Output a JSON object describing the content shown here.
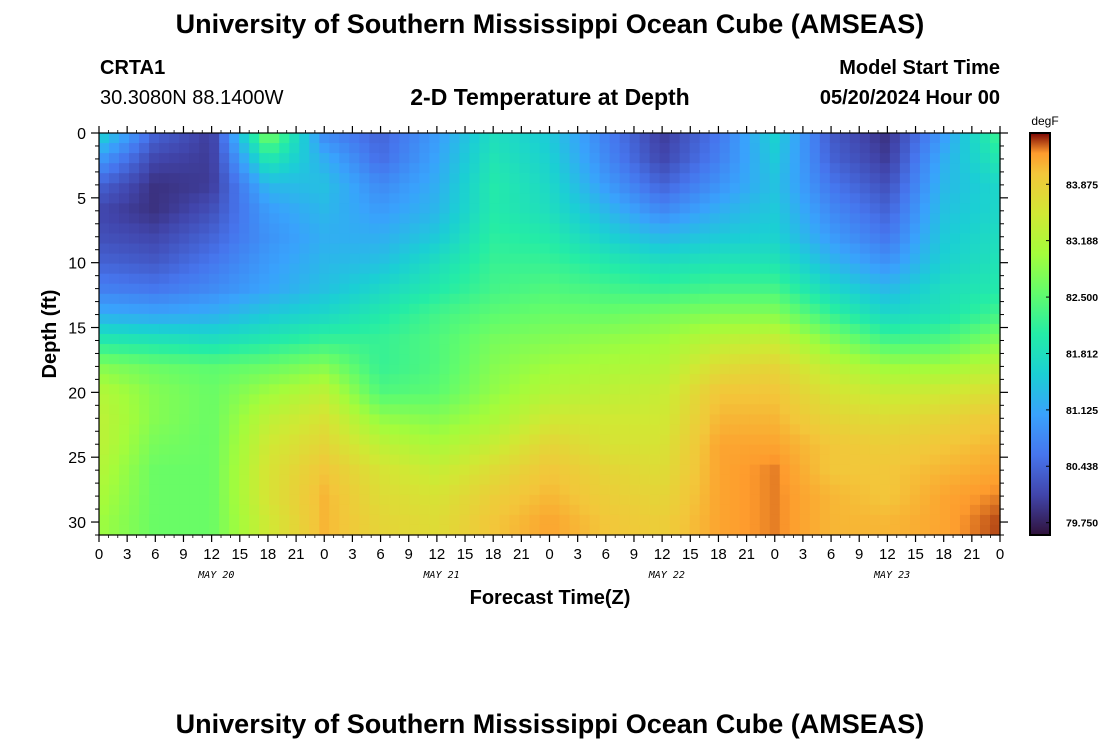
{
  "header": {
    "main_title": "University of Southern Mississippi Ocean Cube (AMSEAS)",
    "station_name": "CRTA1",
    "station_coords": "30.3080N  88.1400W",
    "plot_title": "2-D Temperature at Depth",
    "model_start_label": "Model Start Time",
    "model_start_value": "05/20/2024 Hour 00"
  },
  "footer": {
    "repeat_title": "University of Southern Mississippi Ocean Cube (AMSEAS)"
  },
  "chart_data": {
    "type": "heatmap",
    "title": "2-D Temperature at Depth",
    "xlabel": "Forecast Time(Z)",
    "ylabel": "Depth (ft)",
    "x_range_hours": [
      0,
      96
    ],
    "x_tick_labels": [
      "0",
      "3",
      "6",
      "9",
      "12",
      "15",
      "18",
      "21",
      "0",
      "3",
      "6",
      "9",
      "12",
      "15",
      "18",
      "21",
      "0",
      "3",
      "6",
      "9",
      "12",
      "15",
      "18",
      "21",
      "0",
      "3",
      "6",
      "9",
      "12",
      "15",
      "18",
      "21",
      "0"
    ],
    "day_labels": [
      "MAY 20",
      "MAY 21",
      "MAY 22",
      "MAY 23"
    ],
    "y_range_ft": [
      0,
      31
    ],
    "y_ticks": [
      0,
      5,
      10,
      15,
      20,
      25,
      30
    ],
    "colorbar": {
      "unit": "degF",
      "min": 79.6,
      "max": 84.5,
      "tick_values": [
        83.875,
        83.188,
        82.5,
        81.812,
        81.125,
        80.438,
        79.75
      ],
      "tick_labels": [
        "83.875",
        "83.188",
        "82.500",
        "81.812",
        "81.125",
        "80.438",
        "79.750"
      ]
    },
    "depths_ft": [
      0,
      2,
      4,
      6,
      8,
      10,
      12,
      14,
      16,
      18,
      20,
      22,
      24,
      26,
      28,
      30
    ],
    "hours": [
      0,
      6,
      12,
      18,
      24,
      30,
      36,
      42,
      48,
      54,
      60,
      66,
      72,
      78,
      84,
      90,
      96
    ],
    "temperature_degF": [
      [
        81.7,
        80.4,
        80.0,
        82.8,
        80.8,
        80.4,
        81.0,
        81.8,
        81.5,
        80.7,
        80.0,
        80.6,
        81.6,
        80.3,
        79.9,
        81.0,
        82.3
      ],
      [
        81.0,
        80.1,
        80.0,
        82.0,
        81.2,
        80.5,
        81.1,
        81.9,
        81.6,
        80.8,
        80.1,
        80.7,
        81.5,
        80.4,
        80.0,
        81.2,
        82.0
      ],
      [
        80.4,
        79.9,
        80.0,
        81.3,
        81.4,
        80.8,
        81.2,
        82.0,
        81.7,
        81.0,
        80.4,
        80.9,
        81.4,
        80.6,
        80.2,
        81.3,
        81.7
      ],
      [
        80.1,
        79.9,
        80.2,
        81.0,
        81.3,
        81.0,
        81.3,
        82.0,
        81.8,
        81.3,
        80.8,
        81.2,
        81.5,
        80.8,
        80.4,
        81.4,
        81.7
      ],
      [
        80.2,
        80.1,
        80.4,
        80.9,
        81.2,
        81.2,
        81.5,
        82.1,
        82.0,
        81.6,
        81.3,
        81.5,
        81.6,
        81.0,
        80.6,
        81.5,
        81.8
      ],
      [
        80.4,
        80.3,
        80.6,
        81.0,
        81.3,
        81.4,
        81.8,
        82.2,
        82.2,
        82.0,
        81.8,
        81.9,
        81.9,
        81.3,
        80.9,
        81.6,
        81.9
      ],
      [
        80.7,
        80.6,
        80.8,
        81.1,
        81.4,
        81.7,
        82.0,
        82.3,
        82.4,
        82.3,
        82.2,
        82.3,
        82.3,
        81.7,
        81.3,
        81.8,
        82.0
      ],
      [
        81.2,
        81.1,
        81.2,
        81.5,
        81.7,
        82.0,
        82.3,
        82.5,
        82.6,
        82.6,
        82.7,
        82.8,
        82.8,
        82.2,
        81.7,
        81.9,
        82.3
      ],
      [
        82.0,
        81.9,
        81.8,
        82.0,
        82.2,
        82.2,
        82.4,
        82.7,
        82.8,
        82.9,
        83.0,
        83.3,
        83.4,
        82.8,
        82.3,
        82.4,
        82.8
      ],
      [
        82.8,
        82.6,
        82.5,
        82.6,
        82.8,
        82.2,
        82.4,
        82.8,
        83.0,
        83.1,
        83.2,
        83.7,
        83.8,
        83.3,
        83.0,
        83.0,
        83.3
      ],
      [
        83.2,
        82.8,
        82.6,
        83.0,
        83.3,
        82.4,
        82.5,
        82.9,
        83.2,
        83.3,
        83.4,
        84.0,
        84.0,
        83.6,
        83.4,
        83.5,
        83.7
      ],
      [
        83.3,
        82.8,
        82.6,
        83.3,
        83.6,
        82.9,
        82.8,
        83.1,
        83.5,
        83.5,
        83.5,
        84.1,
        84.1,
        83.8,
        83.7,
        83.8,
        84.0
      ],
      [
        83.3,
        82.7,
        82.6,
        83.5,
        83.8,
        83.3,
        83.1,
        83.4,
        83.8,
        83.6,
        83.6,
        84.2,
        84.2,
        84.0,
        83.9,
        84.0,
        84.1
      ],
      [
        83.2,
        82.6,
        82.6,
        83.6,
        84.0,
        83.6,
        83.4,
        83.7,
        84.0,
        83.8,
        83.7,
        84.2,
        84.3,
        84.0,
        84.0,
        84.1,
        84.2
      ],
      [
        83.1,
        82.6,
        82.6,
        83.6,
        84.1,
        83.7,
        83.6,
        83.9,
        84.1,
        83.9,
        83.8,
        84.2,
        84.3,
        84.1,
        84.0,
        84.2,
        84.3
      ],
      [
        83.0,
        82.6,
        82.6,
        83.5,
        84.1,
        83.8,
        83.7,
        84.0,
        84.2,
        84.0,
        83.9,
        84.2,
        84.3,
        84.1,
        84.1,
        84.2,
        84.4
      ]
    ]
  }
}
